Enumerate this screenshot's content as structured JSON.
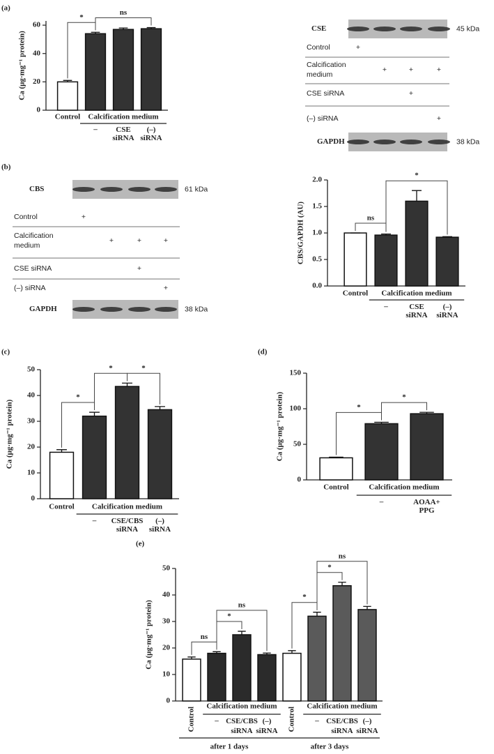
{
  "chart_data": [
    {
      "type": "bar",
      "panel": "(a)",
      "ylabel": "Ca (μg·mg⁻¹ protein)",
      "ylim": [
        0,
        63
      ],
      "yticks": [
        0,
        20,
        40,
        60
      ],
      "medium": "Calcification medium",
      "groups": [
        {
          "categories": [
            "Control",
            "–",
            "CSE siRNA",
            "(–) siRNA"
          ],
          "values": [
            20,
            54,
            57,
            57.5
          ],
          "errors": [
            1,
            1,
            1,
            0.8
          ],
          "colors": [
            "#ffffff",
            "#333333",
            "#333333",
            "#333333"
          ],
          "annotations": [
            {
              "text": "*",
              "from": 0,
              "to": 1
            },
            {
              "text": "ns",
              "from": 1,
              "to": 3
            }
          ]
        }
      ]
    },
    {
      "type": "bar",
      "panel": "(b)",
      "ylabel": "CBS/GAPDH (AU)",
      "ylim": [
        0,
        2
      ],
      "yticks": [
        {
          "value": 0,
          "label": "0.0"
        },
        {
          "value": 0.5,
          "label": "0.5"
        },
        {
          "value": 1,
          "label": "1.0"
        },
        {
          "value": 1.5,
          "label": "1.5"
        },
        {
          "value": 2,
          "label": "2.0"
        }
      ],
      "medium": "Calcification medium",
      "groups": [
        {
          "categories": [
            "Control",
            "–",
            "CSE siRNA",
            "(–) siRNA"
          ],
          "values": [
            1.0,
            0.96,
            1.6,
            0.92
          ],
          "errors": [
            0,
            0.02,
            0.2,
            0.01
          ],
          "colors": [
            "#ffffff",
            "#333333",
            "#333333",
            "#333333"
          ],
          "annotations": [
            {
              "text": "ns",
              "from": 0,
              "to": 1
            },
            {
              "text": "*",
              "from": 1,
              "to": 3
            }
          ]
        }
      ]
    },
    {
      "type": "bar",
      "panel": "(c)",
      "ylabel": "Ca (μg·mg⁻¹ protein)",
      "ylim": [
        0,
        50
      ],
      "yticks": [
        0,
        10,
        20,
        30,
        40,
        50
      ],
      "medium": "Calcification medium",
      "groups": [
        {
          "categories": [
            "Control",
            "–",
            "CSE/CBS siRNA",
            "(–) siRNA"
          ],
          "values": [
            18,
            32,
            43.5,
            34.5
          ],
          "errors": [
            1,
            1.5,
            1.3,
            1.2
          ],
          "colors": [
            "#ffffff",
            "#333333",
            "#333333",
            "#333333"
          ],
          "annotations": [
            {
              "text": "*",
              "from": 0,
              "to": 1
            },
            {
              "text": "*",
              "from": 1,
              "to": 2
            },
            {
              "text": "*",
              "from": 2,
              "to": 3
            }
          ]
        }
      ]
    },
    {
      "type": "bar",
      "panel": "(d)",
      "ylabel": "Ca (μg·mg⁻¹ protein)",
      "ylim": [
        0,
        150
      ],
      "yticks": [
        0,
        50,
        100,
        150
      ],
      "medium": "Calcification medium",
      "groups": [
        {
          "categories": [
            "Control",
            "–",
            "AOAA+ PPG"
          ],
          "values": [
            31,
            79,
            93
          ],
          "errors": [
            1,
            2,
            2
          ],
          "colors": [
            "#ffffff",
            "#333333",
            "#333333"
          ],
          "annotations": [
            {
              "text": "*",
              "from": 0,
              "to": 1
            },
            {
              "text": "*",
              "from": 1,
              "to": 2
            }
          ]
        }
      ]
    },
    {
      "type": "bar",
      "panel": "(e)",
      "ylabel": "Ca (μg·mg⁻¹ protein)",
      "ylim": [
        0,
        50
      ],
      "yticks": [
        0,
        10,
        20,
        30,
        40,
        50
      ],
      "medium": "Calcification medium",
      "groups": [
        {
          "name": "after 1 days",
          "categories": [
            "Control",
            "–",
            "CSE/CBS siRNA",
            "(–) siRNA"
          ],
          "values": [
            15.8,
            18,
            25,
            17.5
          ],
          "errors": [
            0.8,
            0.6,
            1.3,
            0.6
          ],
          "colors": [
            "#ffffff",
            "#2b2b2b",
            "#2b2b2b",
            "#2b2b2b"
          ],
          "annotations": [
            {
              "text": "ns",
              "from": 0,
              "to": 1
            },
            {
              "text": "*",
              "from": 1,
              "to": 2
            },
            {
              "text": "ns",
              "from": 1,
              "to": 3
            }
          ]
        },
        {
          "name": "after 3 days",
          "categories": [
            "Control",
            "–",
            "CSE/CBS siRNA",
            "(–) siRNA"
          ],
          "values": [
            18,
            32,
            43.5,
            34.5
          ],
          "errors": [
            1,
            1.5,
            1.3,
            1.2
          ],
          "colors": [
            "#ffffff",
            "#5a5a5a",
            "#5a5a5a",
            "#5a5a5a"
          ],
          "annotations": [
            {
              "text": "*",
              "from": 0,
              "to": 1
            },
            {
              "text": "*",
              "from": 1,
              "to": 2
            },
            {
              "text": "ns",
              "from": 1,
              "to": 3
            }
          ]
        }
      ]
    }
  ],
  "blots": [
    {
      "protein": "CSE",
      "protein_size": "45 kDa",
      "rows": [
        {
          "label": "Control",
          "marks": [
            "+",
            null,
            null,
            null
          ]
        },
        {
          "label": "Calcification medium",
          "marks": [
            null,
            "+",
            "+",
            "+"
          ]
        },
        {
          "label": "CSE siRNA",
          "marks": [
            null,
            null,
            "+",
            null
          ]
        },
        {
          "label": "(–) siRNA",
          "marks": [
            null,
            null,
            null,
            "+"
          ]
        }
      ],
      "loading": "GAPDH",
      "loading_size": "38 kDa"
    },
    {
      "protein": "CBS",
      "protein_size": "61 kDa",
      "rows": [
        {
          "label": "Control",
          "marks": [
            "+",
            null,
            null,
            null
          ]
        },
        {
          "label": "Calcification medium",
          "marks": [
            null,
            "+",
            "+",
            "+"
          ]
        },
        {
          "label": "CSE siRNA",
          "marks": [
            null,
            null,
            "+",
            null
          ]
        },
        {
          "label": "(–) siRNA",
          "marks": [
            null,
            null,
            null,
            "+"
          ]
        }
      ],
      "loading": "GAPDH",
      "loading_size": "38 kDa"
    }
  ]
}
